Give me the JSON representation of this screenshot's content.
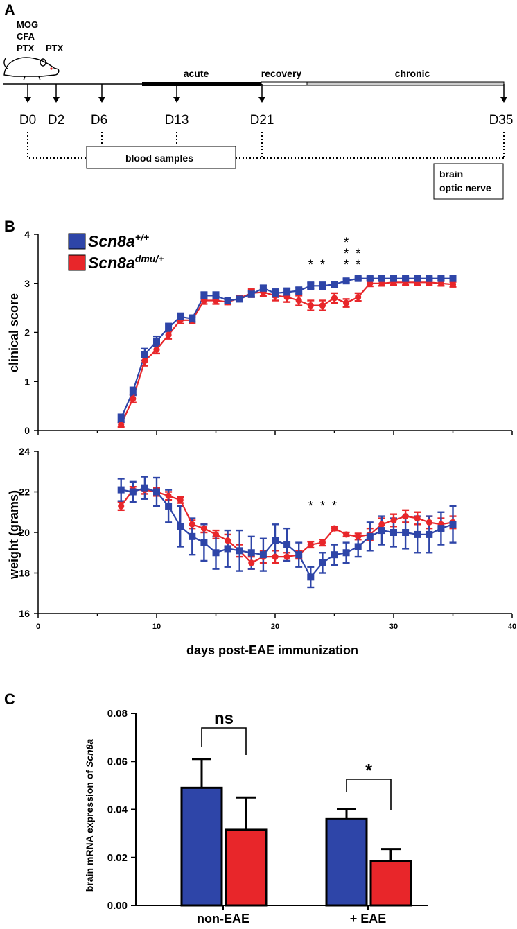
{
  "panel_a": {
    "label": "A",
    "injection_labels": [
      "MOG",
      "CFA",
      "PTX",
      "PTX"
    ],
    "phases": {
      "acute": "acute",
      "recovery": "recovery",
      "chronic": "chronic"
    },
    "days": [
      "D0",
      "D2",
      "D6",
      "D13",
      "D21",
      "D35"
    ],
    "blood_samples": "blood samples",
    "tissue_box": [
      "brain",
      "optic nerve"
    ]
  },
  "panel_b": {
    "label": "B",
    "legend": [
      {
        "base": "Scn8a",
        "sup": "+/+",
        "color": "#2E45A8"
      },
      {
        "base": "Scn8a",
        "sup": "dmu/+",
        "color": "#E8262A"
      }
    ],
    "xlabel": "days post-EAE immunization"
  },
  "panel_c": {
    "label": "C",
    "ylabel_prefix": "brain mRNA expression of ",
    "ylabel_italic": "Scn8a",
    "sig_ns": "ns",
    "sig_star": "*"
  },
  "colors": {
    "wt": "#2E45A8",
    "dmu": "#E8262A"
  },
  "chart_data": [
    {
      "type": "line",
      "title": "",
      "xlabel": "days post-EAE immunization",
      "ylabel": "clinical score",
      "xlim": [
        0,
        40
      ],
      "ylim": [
        0,
        4
      ],
      "yticks": [
        0,
        1,
        2,
        3,
        4
      ],
      "x": [
        7,
        8,
        9,
        10,
        11,
        12,
        13,
        14,
        15,
        16,
        17,
        18,
        19,
        20,
        21,
        22,
        23,
        24,
        25,
        26,
        27,
        28,
        29,
        30,
        31,
        32,
        33,
        34,
        35
      ],
      "series": [
        {
          "name": "Scn8a+/+",
          "values": [
            0.25,
            0.8,
            1.55,
            1.82,
            2.1,
            2.32,
            2.28,
            2.75,
            2.75,
            2.65,
            2.68,
            2.78,
            2.9,
            2.8,
            2.82,
            2.85,
            2.95,
            2.95,
            2.98,
            3.05,
            3.1,
            3.1,
            3.1,
            3.1,
            3.1,
            3.1,
            3.1,
            3.1,
            3.1
          ],
          "errors": [
            0.08,
            0.08,
            0.12,
            0.1,
            0.08,
            0.07,
            0.07,
            0.07,
            0.07,
            0.05,
            0.05,
            0.06,
            0.06,
            0.08,
            0.08,
            0.07,
            0.07,
            0.07,
            0.05,
            0.04,
            0.03,
            0.03,
            0.03,
            0.03,
            0.03,
            0.03,
            0.03,
            0.03,
            0.03
          ]
        },
        {
          "name": "Scn8admu/+",
          "values": [
            0.12,
            0.65,
            1.42,
            1.65,
            1.95,
            2.25,
            2.25,
            2.65,
            2.65,
            2.62,
            2.7,
            2.8,
            2.82,
            2.75,
            2.72,
            2.65,
            2.55,
            2.55,
            2.7,
            2.6,
            2.72,
            3.0,
            3.0,
            3.02,
            3.02,
            3.02,
            3.02,
            3.0,
            2.98
          ],
          "errors": [
            0.05,
            0.08,
            0.1,
            0.08,
            0.08,
            0.07,
            0.07,
            0.07,
            0.07,
            0.05,
            0.05,
            0.08,
            0.08,
            0.1,
            0.1,
            0.1,
            0.1,
            0.1,
            0.1,
            0.08,
            0.08,
            0.06,
            0.05,
            0.05,
            0.05,
            0.05,
            0.05,
            0.05,
            0.05
          ]
        }
      ],
      "annotations": [
        {
          "x": 23,
          "text": "*"
        },
        {
          "x": 24,
          "text": "*"
        },
        {
          "x": 26,
          "text": "*"
        },
        {
          "x": 26,
          "text": "*"
        },
        {
          "x": 26,
          "text": "*"
        },
        {
          "x": 27,
          "text": "*"
        },
        {
          "x": 27,
          "text": "*"
        }
      ]
    },
    {
      "type": "line",
      "title": "",
      "xlabel": "days post-EAE immunization",
      "ylabel": "weight (grams)",
      "xlim": [
        0,
        40
      ],
      "ylim": [
        16,
        24
      ],
      "xticks": [
        0,
        10,
        20,
        30,
        40
      ],
      "yticks": [
        16,
        18,
        20,
        22,
        24
      ],
      "x": [
        7,
        8,
        9,
        10,
        11,
        12,
        13,
        14,
        15,
        16,
        17,
        18,
        19,
        20,
        21,
        22,
        23,
        24,
        25,
        26,
        27,
        28,
        29,
        30,
        31,
        32,
        33,
        34,
        35
      ],
      "series": [
        {
          "name": "Scn8a+/+",
          "values": [
            22.1,
            22.0,
            22.2,
            22.0,
            21.3,
            20.3,
            19.8,
            19.5,
            19.0,
            19.2,
            19.1,
            19.0,
            18.9,
            19.6,
            19.4,
            18.9,
            17.8,
            18.5,
            18.9,
            19.0,
            19.3,
            19.8,
            20.1,
            20.0,
            20.0,
            19.9,
            19.9,
            20.2,
            20.4
          ],
          "errors": [
            0.55,
            0.5,
            0.55,
            0.7,
            0.8,
            1.0,
            0.9,
            0.9,
            0.8,
            0.9,
            1.0,
            0.8,
            0.8,
            0.8,
            0.8,
            0.6,
            0.5,
            0.5,
            0.5,
            0.5,
            0.5,
            0.7,
            0.7,
            0.7,
            0.8,
            0.9,
            0.9,
            0.8,
            0.9
          ]
        },
        {
          "name": "Scn8admu/+",
          "values": [
            21.3,
            22.1,
            22.1,
            22.0,
            21.8,
            21.6,
            20.4,
            20.2,
            19.9,
            19.6,
            19.1,
            18.5,
            18.8,
            18.8,
            18.8,
            18.9,
            19.4,
            19.5,
            20.2,
            19.9,
            19.8,
            19.9,
            20.4,
            20.6,
            20.8,
            20.7,
            20.5,
            20.4,
            20.5
          ],
          "errors": [
            0.2,
            0.15,
            0.2,
            0.2,
            0.2,
            0.15,
            0.2,
            0.2,
            0.2,
            0.3,
            0.3,
            0.3,
            0.3,
            0.3,
            0.2,
            0.2,
            0.15,
            0.15,
            0.1,
            0.1,
            0.15,
            0.3,
            0.3,
            0.3,
            0.3,
            0.3,
            0.3,
            0.3,
            0.3
          ]
        }
      ],
      "annotations": [
        {
          "x": 23,
          "text": "*"
        },
        {
          "x": 24,
          "text": "*"
        },
        {
          "x": 25,
          "text": "*"
        }
      ]
    },
    {
      "type": "bar",
      "title": "",
      "xlabel": "",
      "ylabel": "brain mRNA expression of Scn8a",
      "categories": [
        "non-EAE",
        "+ EAE"
      ],
      "ylim": [
        0,
        0.08
      ],
      "yticks": [
        "0.00",
        "0.02",
        "0.04",
        "0.06",
        "0.08"
      ],
      "series": [
        {
          "name": "Scn8a+/+",
          "values": [
            0.049,
            0.036
          ],
          "errors": [
            0.012,
            0.004
          ]
        },
        {
          "name": "Scn8admu/+",
          "values": [
            0.0315,
            0.0185
          ],
          "errors": [
            0.0135,
            0.005
          ]
        }
      ],
      "significance": [
        {
          "category": "non-EAE",
          "label": "ns"
        },
        {
          "category": "+ EAE",
          "label": "*"
        }
      ]
    }
  ]
}
